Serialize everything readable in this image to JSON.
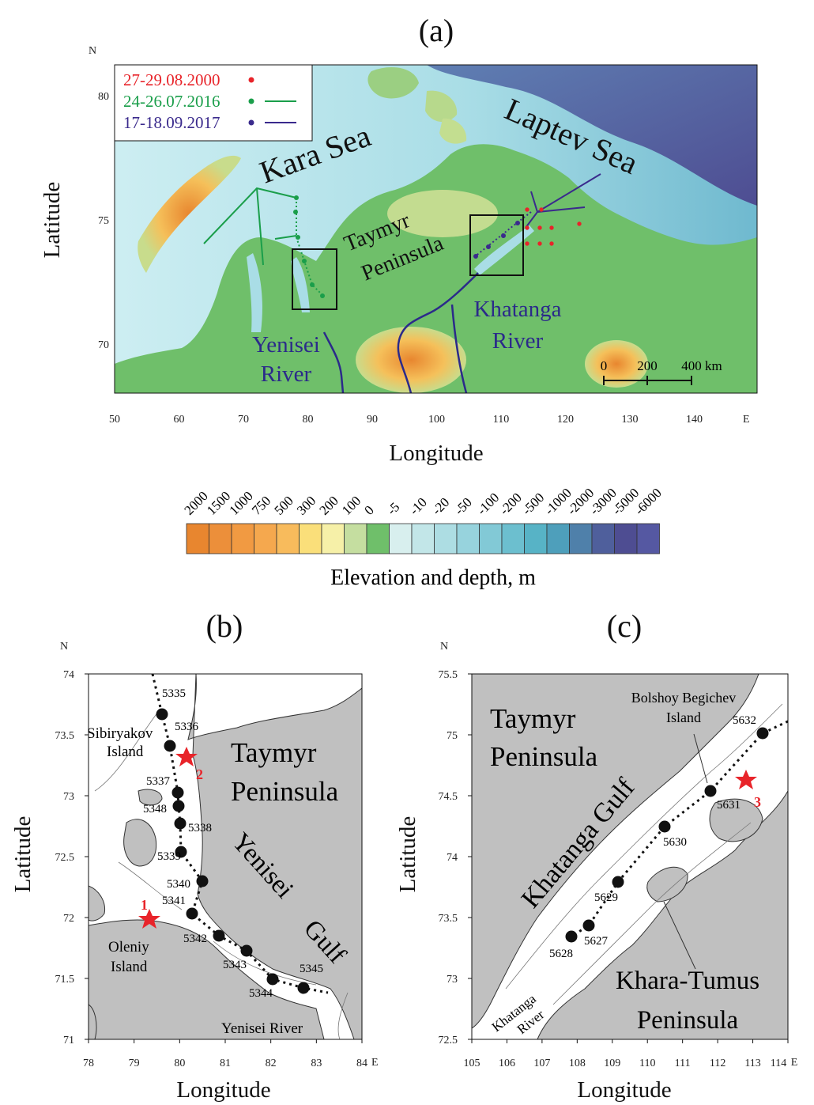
{
  "panels": {
    "a": {
      "tag": "(a)",
      "north": "N",
      "east": "E",
      "lat_ticks": [
        "80",
        "75",
        "70"
      ],
      "lon_ticks": [
        "50",
        "60",
        "70",
        "80",
        "90",
        "100",
        "110",
        "120",
        "130",
        "140"
      ],
      "xlabel": "Longitude",
      "ylabel": "Latitude",
      "legend": [
        {
          "label": "27-29.08.2000",
          "color": "#e8242a",
          "symbol": "dot"
        },
        {
          "label": "24-26.07.2016",
          "color": "#1a9e4a",
          "symbol": "dot-line"
        },
        {
          "label": "17-18.09.2017",
          "color": "#3a2a8c",
          "symbol": "dot-line"
        }
      ],
      "place_labels": {
        "kara_sea": "Kara Sea",
        "laptev_sea": "Laptev Sea",
        "taymyr": "Taymyr",
        "peninsula": "Peninsula",
        "khatanga": "Khatanga",
        "khatanga_river": "River",
        "yenisei": "Yenisei",
        "yenisei_river": "River"
      },
      "scale_bar": [
        "0",
        "200",
        "400 km"
      ]
    },
    "colorbar": {
      "labels": [
        "2000",
        "1500",
        "1000",
        "750",
        "500",
        "300",
        "200",
        "100",
        "0",
        "-5",
        "-10",
        "-20",
        "-50",
        "-100",
        "-200",
        "-500",
        "-1000",
        "-2000",
        "-3000",
        "-5000",
        "-6000"
      ],
      "colors": [
        "#e8862f",
        "#ec8f3a",
        "#f19a42",
        "#f5a84e",
        "#f8bb5c",
        "#fadf7a",
        "#f6f0a8",
        "#c5dea0",
        "#6fbf6a",
        "#d8efee",
        "#c2e6e8",
        "#addde3",
        "#97d3dd",
        "#82c9d6",
        "#6cbfcf",
        "#57b3c6",
        "#4e9fbb",
        "#4f80aa",
        "#4f5f9c",
        "#4e4d92",
        "#5558a2"
      ],
      "title": "Elevation and depth, m"
    },
    "b": {
      "tag": "(b)",
      "north": "N",
      "east": "E",
      "lat_ticks": [
        "74",
        "73.5",
        "73",
        "72.5",
        "72",
        "71.5",
        "71"
      ],
      "lon_ticks": [
        "78",
        "79",
        "80",
        "81",
        "82",
        "83",
        "84"
      ],
      "xlabel": "Longitude",
      "ylabel": "Latitude",
      "stations": [
        "5335",
        "5336",
        "5337",
        "5348",
        "5338",
        "5339",
        "5340",
        "5341",
        "5342",
        "5343",
        "5344",
        "5345"
      ],
      "stars": [
        "1",
        "2"
      ],
      "labels": {
        "sibiryakov": "Sibiryakov",
        "island1": "Island",
        "taymyr": "Taymyr",
        "peninsula": "Peninsula",
        "yenisei_gulf_1": "Yenisei",
        "yenisei_gulf_2": "Gulf",
        "oleniy": "Oleniy",
        "island2": "Island",
        "yenisei_river": "Yenisei River"
      }
    },
    "c": {
      "tag": "(c)",
      "north": "N",
      "east": "E",
      "lat_ticks": [
        "75.5",
        "75",
        "74.5",
        "74",
        "73.5",
        "73",
        "72.5"
      ],
      "lon_ticks": [
        "105",
        "106",
        "107",
        "108",
        "109",
        "110",
        "111",
        "112",
        "113",
        "114"
      ],
      "xlabel": "Longitude",
      "ylabel": "Latitude",
      "stations": [
        "5632",
        "5631",
        "5630",
        "5629",
        "5627",
        "5628"
      ],
      "stars": [
        "3"
      ],
      "labels": {
        "taymyr": "Taymyr",
        "peninsula": "Peninsula",
        "bolshoy": "Bolshoy Begichev",
        "island": "Island",
        "khatanga_gulf": "Khatanga Gulf",
        "khara_tumus": "Khara-Tumus",
        "peninsula2": "Peninsula",
        "khatanga": "Khatanga",
        "river": "River"
      }
    }
  }
}
